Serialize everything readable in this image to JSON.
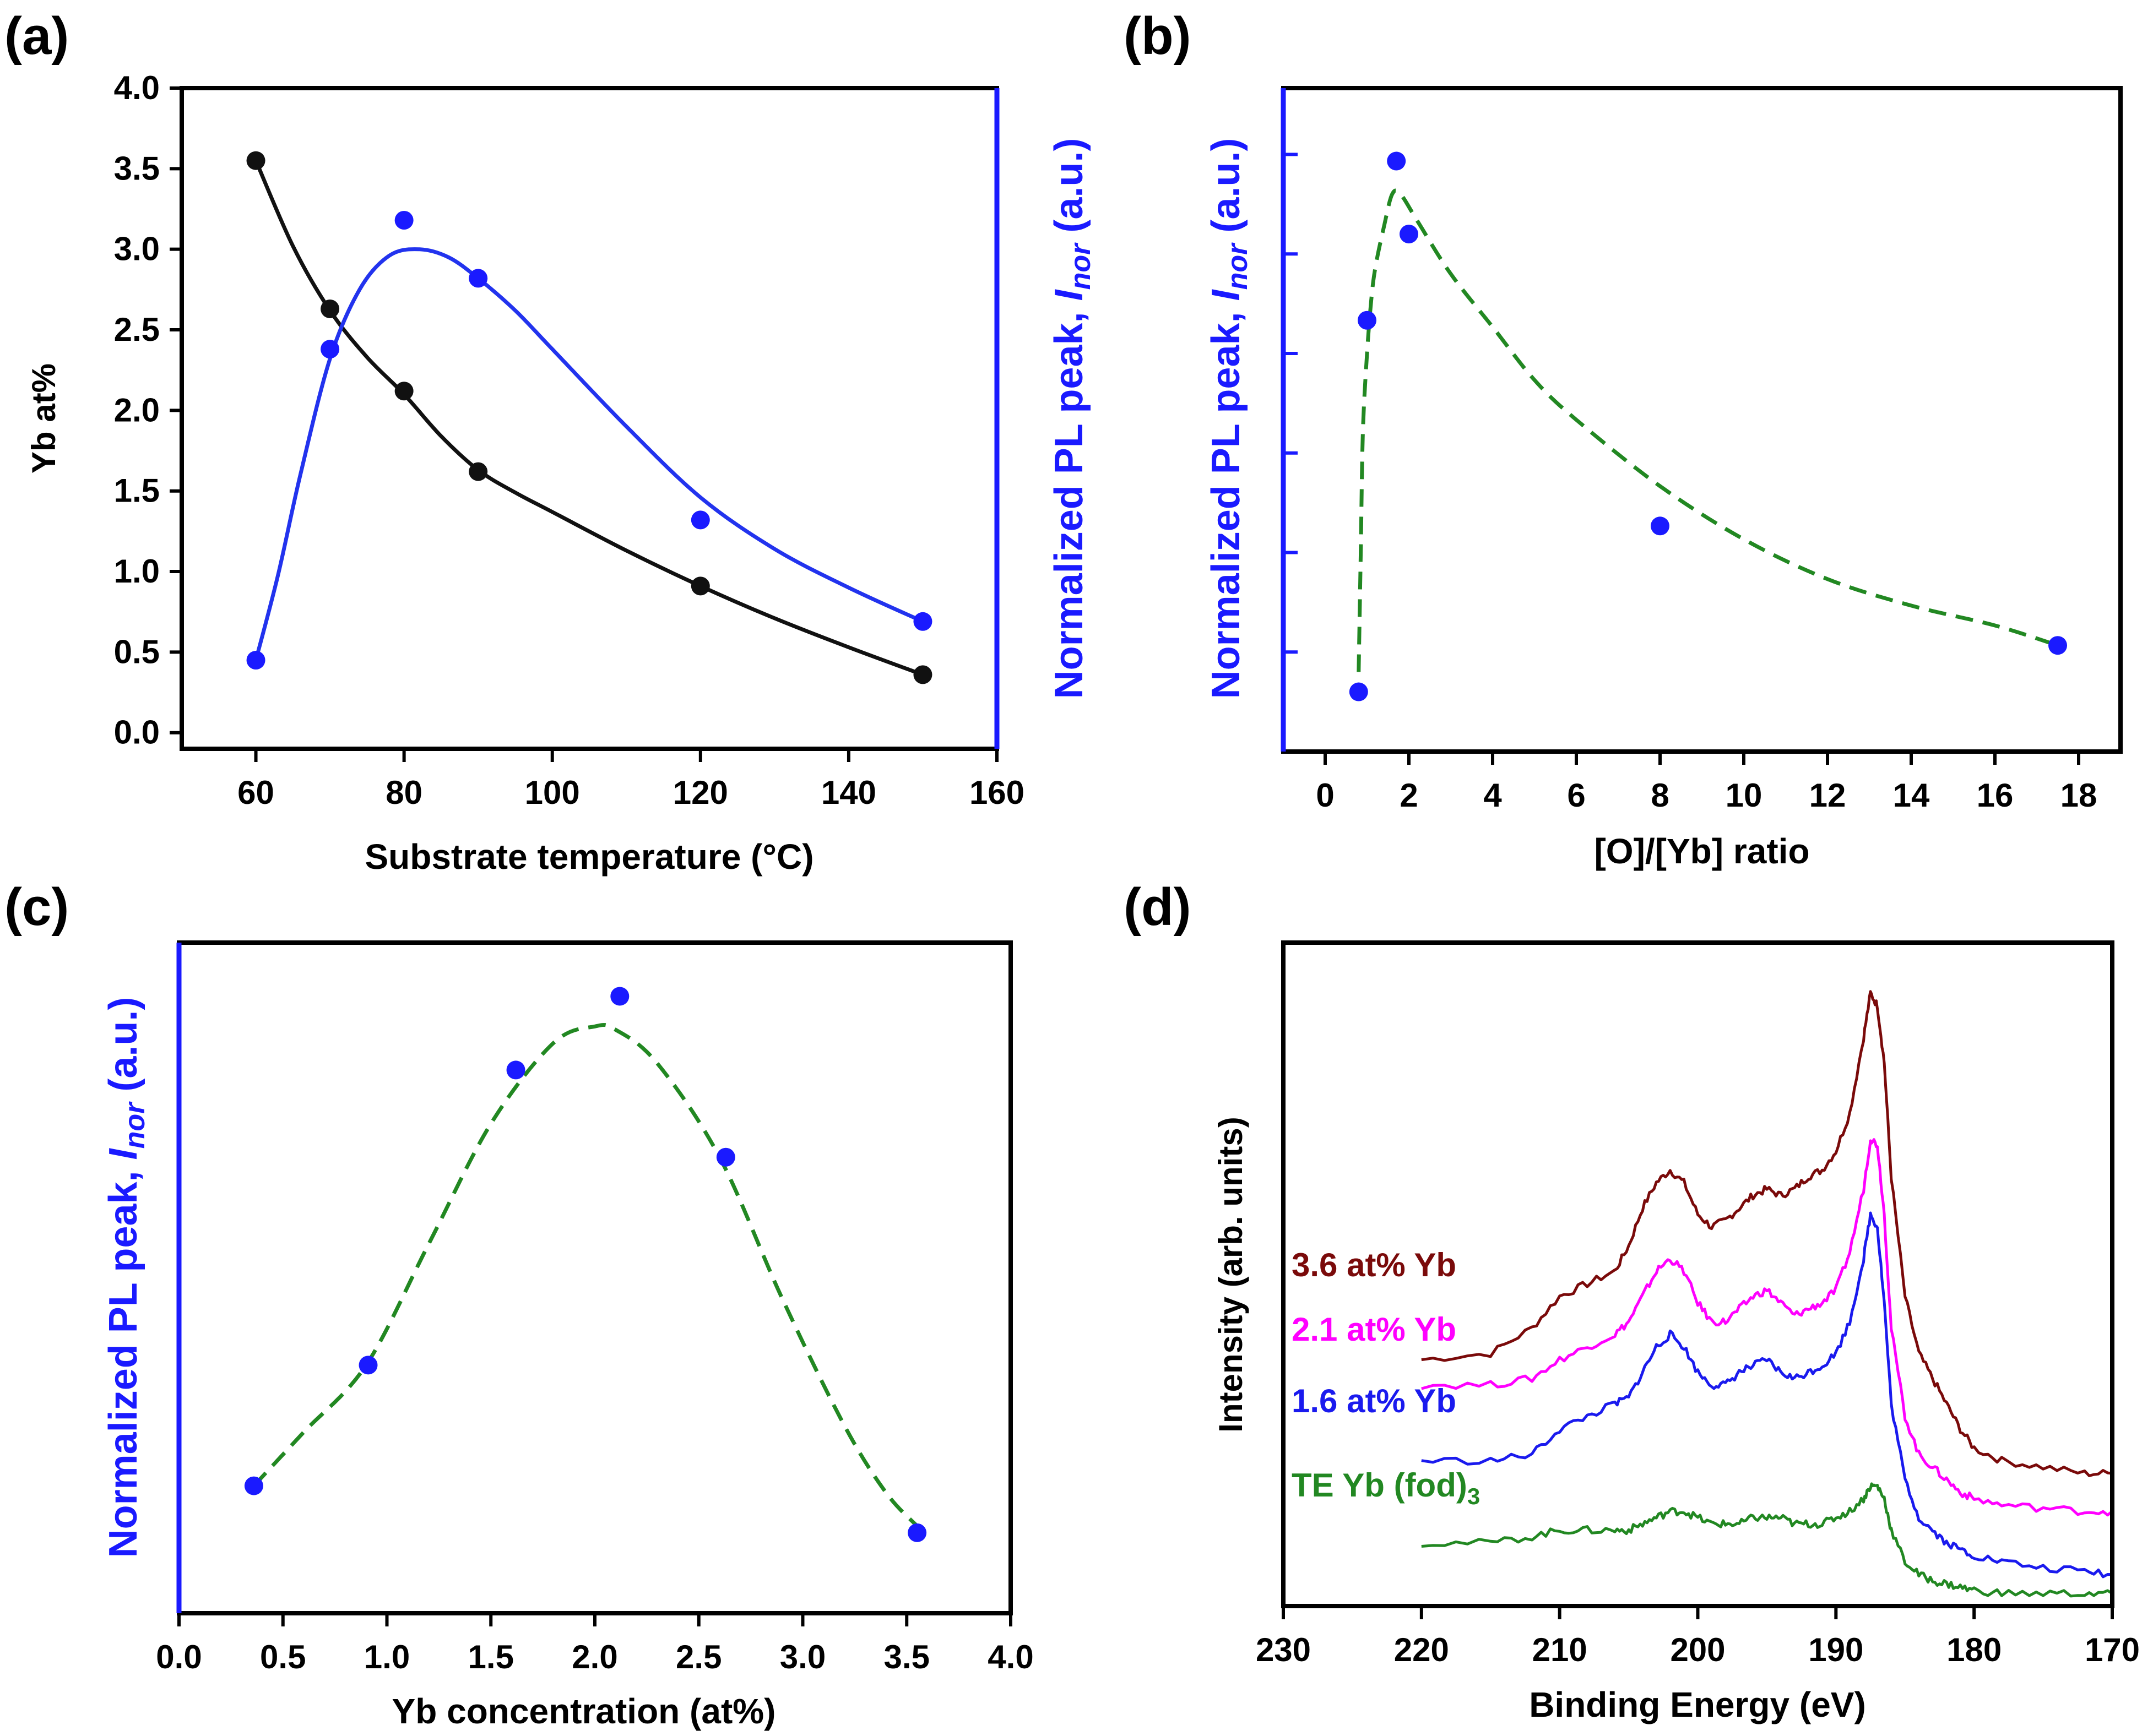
{
  "figure": {
    "panel_labels": [
      "(a)",
      "(b)",
      "(c)",
      "(d)"
    ]
  },
  "chart_data": [
    {
      "panel": "(a)",
      "type": "scatter",
      "xlabel": "Substrate temperature (°C)",
      "ylabel_left": "Yb at%",
      "ylabel_right": "Normalized PL peak, I_nor (a.u.)",
      "ylabel_right_parts": {
        "main": "Normalized PL peak, ",
        "var": "I",
        "sub": "nor",
        "unit": " (a.u.)"
      },
      "xlim": [
        50,
        160
      ],
      "ylim_left": [
        -0.1,
        4.0
      ],
      "x_ticks": [
        60,
        80,
        100,
        120,
        140,
        160
      ],
      "y_ticks": [
        0.0,
        0.5,
        1.0,
        1.5,
        2.0,
        2.5,
        3.0,
        3.5,
        4.0
      ],
      "y_tick_labels": [
        "0.0",
        "0.5",
        "1.0",
        "1.5",
        "2.0",
        "2.5",
        "3.0",
        "3.5",
        "4.0"
      ],
      "series": [
        {
          "name": "Yb at%",
          "axis": "left",
          "color": "#111111",
          "x": [
            60,
            70,
            80,
            90,
            120,
            150
          ],
          "values": [
            3.55,
            2.63,
            2.12,
            1.62,
            0.91,
            0.36
          ],
          "fit_x": [
            60,
            65,
            70,
            75,
            80,
            85,
            90,
            95,
            100,
            110,
            120,
            130,
            140,
            150
          ],
          "fit_y": [
            3.55,
            3.02,
            2.62,
            2.33,
            2.1,
            1.84,
            1.63,
            1.49,
            1.37,
            1.13,
            0.91,
            0.71,
            0.53,
            0.36
          ]
        },
        {
          "name": "Normalized PL peak",
          "axis": "right",
          "color": "#1a1aff",
          "fit_color": "#2233ee",
          "x": [
            60,
            70,
            80,
            90,
            120,
            150
          ],
          "values": [
            0.45,
            2.38,
            3.18,
            2.82,
            1.32,
            0.69
          ],
          "fit_x": [
            60,
            63,
            66,
            70,
            74,
            78,
            82,
            86,
            90,
            95,
            100,
            110,
            120,
            130,
            140,
            150
          ],
          "fit_y": [
            0.45,
            0.98,
            1.6,
            2.32,
            2.75,
            2.96,
            3.0,
            2.95,
            2.82,
            2.62,
            2.38,
            1.9,
            1.46,
            1.14,
            0.9,
            0.69
          ]
        }
      ]
    },
    {
      "panel": "(b)",
      "type": "scatter",
      "xlabel": "[O]/[Yb] ratio",
      "ylabel_left": "Normalized PL peak, I_nor (a.u.)",
      "ylabel_left_parts": {
        "main": "Normalized PL peak, ",
        "var": "I",
        "sub": "nor",
        "unit": " (a.u.)"
      },
      "xlim": [
        -1,
        19
      ],
      "ylim": [
        0,
        1
      ],
      "x_ticks": [
        0,
        2,
        4,
        6,
        8,
        10,
        12,
        14,
        16,
        18
      ],
      "series": [
        {
          "name": "Normalized PL peak",
          "color": "#1a1aff",
          "fit_color": "#228822",
          "x": [
            0.8,
            1.0,
            1.7,
            2.0,
            8.0,
            17.5
          ],
          "values": [
            0.09,
            0.65,
            0.89,
            0.78,
            0.34,
            0.16
          ],
          "fit_x": [
            0.8,
            0.85,
            0.9,
            1.0,
            1.1,
            1.2,
            1.4,
            1.6,
            1.8,
            2.2,
            3,
            4,
            5,
            6,
            8,
            10,
            12,
            14,
            16,
            17.5
          ],
          "fit_y": [
            0.12,
            0.3,
            0.48,
            0.6,
            0.68,
            0.73,
            0.79,
            0.84,
            0.84,
            0.8,
            0.72,
            0.64,
            0.56,
            0.5,
            0.4,
            0.32,
            0.26,
            0.22,
            0.19,
            0.16
          ]
        }
      ]
    },
    {
      "panel": "(c)",
      "type": "scatter",
      "xlabel": "Yb concentration (at%)",
      "ylabel_left": "Normalized PL peak, I_nor (a.u.)",
      "ylabel_left_parts": {
        "main": "Normalized PL peak, ",
        "var": "I",
        "sub": "nor",
        "unit": " (a.u.)"
      },
      "xlim": [
        0,
        4
      ],
      "ylim": [
        0,
        1
      ],
      "x_ticks": [
        0.0,
        0.5,
        1.0,
        1.5,
        2.0,
        2.5,
        3.0,
        3.5,
        4.0
      ],
      "x_tick_labels": [
        "0.0",
        "0.5",
        "1.0",
        "1.5",
        "2.0",
        "2.5",
        "3.0",
        "3.5",
        "4.0"
      ],
      "series": [
        {
          "name": "Normalized PL peak",
          "color": "#1a1aff",
          "fit_color": "#228822",
          "x": [
            0.36,
            0.91,
            1.62,
            2.12,
            2.63,
            3.55
          ],
          "values": [
            0.19,
            0.37,
            0.81,
            0.92,
            0.68,
            0.12
          ],
          "fit_x": [
            0.36,
            0.6,
            0.9,
            1.2,
            1.5,
            1.8,
            2.0,
            2.1,
            2.3,
            2.6,
            2.9,
            3.2,
            3.4,
            3.55
          ],
          "fit_y": [
            0.19,
            0.27,
            0.37,
            0.55,
            0.73,
            0.85,
            0.875,
            0.87,
            0.82,
            0.68,
            0.47,
            0.28,
            0.18,
            0.13
          ]
        }
      ]
    },
    {
      "panel": "(d)",
      "type": "line",
      "xlabel": "Binding Energy (eV)",
      "ylabel": "Intensity (arb. units)",
      "xlim": [
        230,
        170
      ],
      "x_ticks": [
        230,
        220,
        210,
        200,
        190,
        180,
        170
      ],
      "series": [
        {
          "name": "3.6 at% Yb",
          "color": "#7a0a0a",
          "x": [
            220,
            215,
            212,
            210,
            208,
            206,
            205,
            204,
            203,
            202,
            201,
            200,
            199,
            198,
            197,
            196,
            195,
            194,
            193,
            192,
            191,
            190,
            189,
            188,
            187.5,
            187,
            186.5,
            186,
            185,
            184,
            183,
            182,
            181,
            180,
            178,
            175,
            172,
            170
          ],
          "values": [
            0.39,
            0.4,
            0.44,
            0.49,
            0.51,
            0.53,
            0.57,
            0.63,
            0.67,
            0.69,
            0.67,
            0.62,
            0.6,
            0.61,
            0.63,
            0.65,
            0.66,
            0.65,
            0.66,
            0.68,
            0.69,
            0.72,
            0.78,
            0.9,
            0.97,
            0.95,
            0.86,
            0.68,
            0.49,
            0.4,
            0.36,
            0.32,
            0.28,
            0.25,
            0.23,
            0.22,
            0.21,
            0.21
          ]
        },
        {
          "name": "2.1 at% Yb",
          "color": "#ff00ff",
          "x": [
            220,
            215,
            212,
            210,
            208,
            206,
            205,
            204,
            203,
            202,
            201,
            200,
            199,
            198,
            197,
            196,
            195,
            194,
            193,
            192,
            191,
            190,
            189,
            188,
            187.5,
            187,
            186.5,
            186,
            185,
            184,
            183,
            182,
            181,
            180,
            178,
            175,
            172,
            170
          ],
          "values": [
            0.35,
            0.35,
            0.36,
            0.39,
            0.41,
            0.43,
            0.45,
            0.49,
            0.53,
            0.55,
            0.53,
            0.48,
            0.45,
            0.45,
            0.47,
            0.49,
            0.5,
            0.48,
            0.46,
            0.47,
            0.48,
            0.5,
            0.56,
            0.66,
            0.74,
            0.73,
            0.62,
            0.44,
            0.3,
            0.24,
            0.22,
            0.2,
            0.18,
            0.17,
            0.16,
            0.155,
            0.15,
            0.15
          ]
        },
        {
          "name": "1.6 at% Yb",
          "color": "#1a1aee",
          "x": [
            220,
            215,
            212,
            210,
            208,
            206,
            205,
            204,
            203,
            202,
            201,
            200,
            199,
            198,
            197,
            196,
            195,
            194,
            193,
            192,
            191,
            190,
            189,
            188,
            187.5,
            187,
            186.5,
            186,
            185,
            184,
            183,
            182,
            181,
            180,
            178,
            175,
            172,
            170
          ],
          "values": [
            0.23,
            0.23,
            0.24,
            0.28,
            0.3,
            0.32,
            0.33,
            0.37,
            0.41,
            0.43,
            0.41,
            0.37,
            0.35,
            0.35,
            0.37,
            0.38,
            0.39,
            0.37,
            0.36,
            0.37,
            0.38,
            0.4,
            0.45,
            0.55,
            0.62,
            0.6,
            0.48,
            0.32,
            0.2,
            0.14,
            0.12,
            0.1,
            0.09,
            0.08,
            0.07,
            0.06,
            0.055,
            0.05
          ]
        },
        {
          "name": "TE Yb (fod)3",
          "label_parts": {
            "main": "TE Yb (fod)",
            "sub": "3"
          },
          "color": "#228822",
          "x": [
            220,
            215,
            212,
            210,
            208,
            206,
            205,
            204,
            203,
            202,
            201,
            200,
            199,
            198,
            197,
            196,
            195,
            194,
            193,
            192,
            191,
            190,
            189,
            188,
            187.5,
            187,
            186.5,
            186,
            185,
            184,
            183,
            182,
            181,
            180,
            178,
            175,
            172,
            170
          ],
          "values": [
            0.1,
            0.1,
            0.11,
            0.12,
            0.12,
            0.12,
            0.12,
            0.13,
            0.14,
            0.15,
            0.15,
            0.14,
            0.13,
            0.13,
            0.13,
            0.14,
            0.14,
            0.14,
            0.13,
            0.13,
            0.13,
            0.14,
            0.15,
            0.17,
            0.19,
            0.19,
            0.17,
            0.12,
            0.07,
            0.05,
            0.04,
            0.035,
            0.03,
            0.025,
            0.02,
            0.02,
            0.02,
            0.02
          ]
        }
      ]
    }
  ]
}
